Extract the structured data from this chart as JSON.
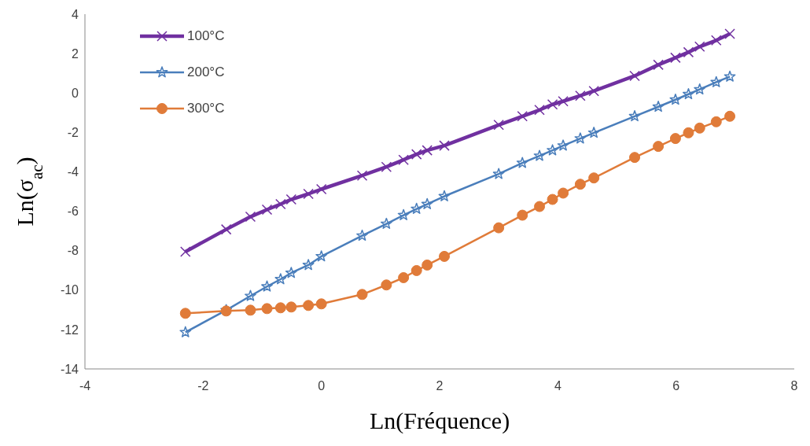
{
  "chart_data": {
    "type": "line",
    "xlabel": "Ln(Fréquence)",
    "ylabel": "Ln(σ$_{ac}$)",
    "x": [
      -2.3,
      -1.61,
      -1.2,
      -0.92,
      -0.69,
      -0.51,
      -0.22,
      0,
      0.69,
      1.1,
      1.39,
      1.61,
      1.79,
      2.08,
      3.0,
      3.4,
      3.69,
      3.91,
      4.09,
      4.38,
      4.61,
      5.3,
      5.7,
      5.99,
      6.21,
      6.4,
      6.68,
      6.91
    ],
    "series": [
      {
        "name": "100°C",
        "color": "#7030a0",
        "marker": "cross",
        "values": [
          -8.05,
          -6.92,
          -6.28,
          -5.92,
          -5.64,
          -5.4,
          -5.12,
          -4.88,
          -4.19,
          -3.75,
          -3.39,
          -3.11,
          -2.91,
          -2.67,
          -1.62,
          -1.18,
          -0.86,
          -0.58,
          -0.42,
          -0.14,
          0.1,
          0.87,
          1.43,
          1.79,
          2.07,
          2.35,
          2.67,
          3.0
        ]
      },
      {
        "name": "200°C",
        "color": "#4a7ebb",
        "marker": "star",
        "values": [
          -12.14,
          -11.02,
          -10.3,
          -9.82,
          -9.45,
          -9.13,
          -8.73,
          -8.29,
          -7.24,
          -6.64,
          -6.2,
          -5.88,
          -5.64,
          -5.24,
          -4.11,
          -3.55,
          -3.19,
          -2.91,
          -2.67,
          -2.31,
          -2.02,
          -1.18,
          -0.7,
          -0.34,
          -0.06,
          0.18,
          0.55,
          0.83
        ]
      },
      {
        "name": "300°C",
        "color": "#e07b39",
        "marker": "circle",
        "values": [
          -11.18,
          -11.06,
          -11.02,
          -10.94,
          -10.9,
          -10.86,
          -10.78,
          -10.7,
          -10.22,
          -9.74,
          -9.37,
          -9.01,
          -8.73,
          -8.29,
          -6.84,
          -6.2,
          -5.76,
          -5.4,
          -5.08,
          -4.63,
          -4.31,
          -3.27,
          -2.71,
          -2.31,
          -2.02,
          -1.78,
          -1.46,
          -1.18
        ]
      }
    ],
    "xlim": [
      -4,
      8
    ],
    "xticks": [
      -4,
      -2,
      0,
      2,
      4,
      6,
      8
    ],
    "ylim": [
      -14,
      4
    ],
    "yticks": [
      -14,
      -12,
      -10,
      -8,
      -6,
      -4,
      -2,
      0,
      2,
      4
    ],
    "grid": false,
    "legend": "top left",
    "line_style": "solid"
  }
}
